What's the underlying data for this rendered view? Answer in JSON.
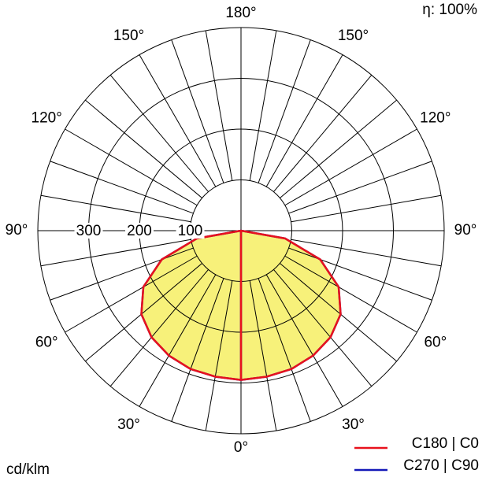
{
  "chart_data": {
    "type": "polar-line",
    "title": "",
    "efficiency_label": "η: 100%",
    "unit_label": "cd/klm",
    "radial_ticks": [
      100,
      200,
      300
    ],
    "radial_max": 400,
    "angle_labels": {
      "bottom": "0°",
      "top": "180°",
      "left": [
        "30°",
        "60°",
        "90°",
        "120°",
        "150°"
      ],
      "right": [
        "30°",
        "60°",
        "90°",
        "120°",
        "150°"
      ]
    },
    "angle_label_values": [
      30,
      60,
      90,
      120,
      150
    ],
    "series": [
      {
        "name": "C180 | C0",
        "color": "#e8121d",
        "fill": "#f7f17a",
        "angles_deg": [
          0,
          10,
          20,
          30,
          40,
          50,
          60,
          70,
          80,
          90
        ],
        "values": [
          294,
          292,
          290,
          284,
          274,
          256,
          222,
          166,
          88,
          0
        ]
      },
      {
        "name": "C270 | C90",
        "color": "#1419b8",
        "fill": "#f7f17a",
        "angles_deg": [
          0,
          10,
          20,
          30,
          40,
          50,
          60,
          70,
          80,
          90
        ],
        "values": [
          294,
          292,
          290,
          284,
          274,
          256,
          222,
          166,
          88,
          0
        ]
      }
    ]
  }
}
